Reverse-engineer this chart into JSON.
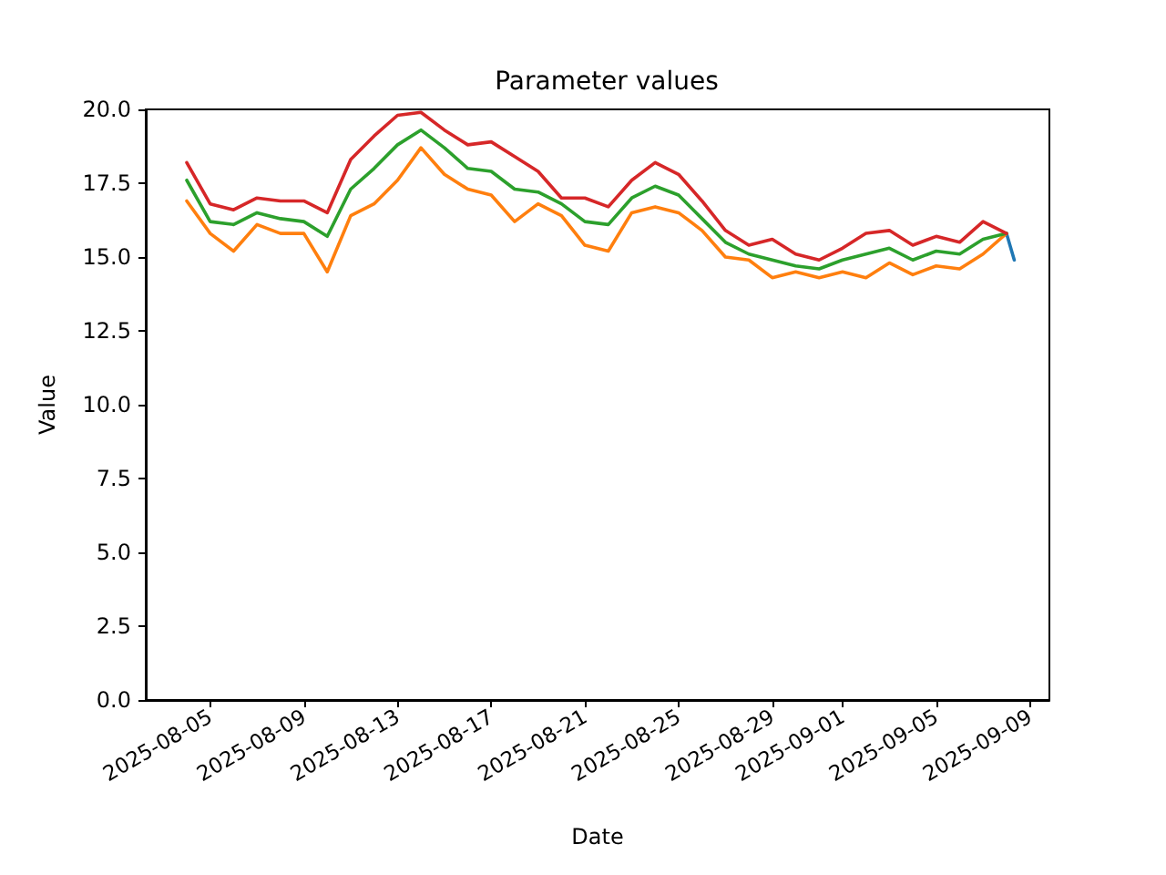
{
  "chart_data": {
    "type": "line",
    "title": "Parameter values",
    "xlabel": "Date",
    "ylabel": "Value",
    "x": [
      "2025-08-04",
      "2025-08-05",
      "2025-08-06",
      "2025-08-07",
      "2025-08-08",
      "2025-08-09",
      "2025-08-10",
      "2025-08-11",
      "2025-08-12",
      "2025-08-13",
      "2025-08-14",
      "2025-08-15",
      "2025-08-16",
      "2025-08-17",
      "2025-08-18",
      "2025-08-19",
      "2025-08-20",
      "2025-08-21",
      "2025-08-22",
      "2025-08-23",
      "2025-08-24",
      "2025-08-25",
      "2025-08-26",
      "2025-08-27",
      "2025-08-28",
      "2025-08-29",
      "2025-08-30",
      "2025-08-31",
      "2025-09-01",
      "2025-09-02",
      "2025-09-03",
      "2025-09-04",
      "2025-09-05",
      "2025-09-06",
      "2025-09-07",
      "2025-09-08"
    ],
    "series": [
      {
        "color": "#1f77b4",
        "x": [
          "2025-09-08",
          "2025-09-08T08:00"
        ],
        "values": [
          15.8,
          14.9
        ]
      },
      {
        "color": "#ff7f0e",
        "values": [
          16.9,
          15.8,
          15.2,
          16.1,
          15.8,
          15.8,
          14.5,
          16.4,
          16.8,
          17.6,
          18.7,
          17.8,
          17.3,
          17.1,
          16.2,
          16.8,
          16.4,
          15.4,
          15.2,
          16.5,
          16.7,
          16.5,
          15.9,
          15.0,
          14.9,
          14.3,
          14.5,
          14.3,
          14.5,
          14.3,
          14.8,
          14.4,
          14.7,
          14.6,
          15.1,
          15.8
        ]
      },
      {
        "color": "#2ca02c",
        "values": [
          17.6,
          16.2,
          16.1,
          16.5,
          16.3,
          16.2,
          15.7,
          17.3,
          18.0,
          18.8,
          19.3,
          18.7,
          18.0,
          17.9,
          17.3,
          17.2,
          16.8,
          16.2,
          16.1,
          17.0,
          17.4,
          17.1,
          16.3,
          15.5,
          15.1,
          14.9,
          14.7,
          14.6,
          14.9,
          15.1,
          15.3,
          14.9,
          15.2,
          15.1,
          15.6,
          15.8
        ]
      },
      {
        "color": "#d62728",
        "values": [
          18.2,
          16.8,
          16.6,
          17.0,
          16.9,
          16.9,
          16.5,
          18.3,
          19.1,
          19.8,
          19.9,
          19.3,
          18.8,
          18.9,
          18.4,
          17.9,
          17.0,
          17.0,
          16.7,
          17.6,
          18.2,
          17.8,
          16.9,
          15.9,
          15.4,
          15.6,
          15.1,
          14.9,
          15.3,
          15.8,
          15.9,
          15.4,
          15.7,
          15.5,
          16.2,
          15.8
        ]
      }
    ],
    "xlim": [
      "2025-08-02T06:00",
      "2025-09-09T20:00"
    ],
    "xticks": [
      "2025-08-05",
      "2025-08-09",
      "2025-08-13",
      "2025-08-17",
      "2025-08-21",
      "2025-08-25",
      "2025-08-29",
      "2025-09-01",
      "2025-09-05",
      "2025-09-09"
    ],
    "ylim": [
      0,
      20
    ],
    "yticks": [
      {
        "value": 0,
        "label": "0.0"
      },
      {
        "value": 2.5,
        "label": "2.5"
      },
      {
        "value": 5,
        "label": "5.0"
      },
      {
        "value": 7.5,
        "label": "7.5"
      },
      {
        "value": 10,
        "label": "10.0"
      },
      {
        "value": 12.5,
        "label": "12.5"
      },
      {
        "value": 15,
        "label": "15.0"
      },
      {
        "value": 17.5,
        "label": "17.5"
      },
      {
        "value": 20,
        "label": "20.0"
      }
    ]
  }
}
